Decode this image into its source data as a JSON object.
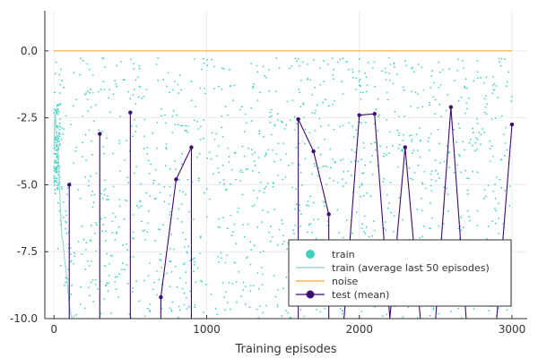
{
  "chart_data": {
    "type": "line",
    "title": "",
    "xlabel": "Training episodes",
    "ylabel": "",
    "xlim": [
      -60,
      3100
    ],
    "ylim": [
      -10,
      1.5
    ],
    "xticks": [
      0,
      1000,
      2000,
      3000
    ],
    "xtick_labels": [
      "0",
      "1000",
      "2000",
      "3000"
    ],
    "yticks": [
      0,
      -2.5,
      -5,
      -7.5,
      -10
    ],
    "ytick_labels": [
      "0.0",
      "-2.5",
      "-5.0",
      "-7.5",
      "-10.0"
    ],
    "grid": true,
    "legend_position": "bottom-right",
    "colors": {
      "train": "#3fd1c0",
      "train_avg": "#9fd6d2",
      "noise": "#f5b04a",
      "test": "#3b0a72"
    },
    "series": [
      {
        "name": "train",
        "kind": "scatter",
        "note_count": 1400,
        "x_range": [
          0,
          3000
        ],
        "y_range": [
          -10,
          -0.25
        ]
      },
      {
        "name": "train (average last 50 episodes)",
        "kind": "line",
        "x": [
          0,
          5,
          10,
          20,
          30,
          40,
          50,
          60,
          70,
          80,
          90,
          100,
          110,
          120,
          130
        ],
        "y": [
          -3.6,
          -2.4,
          -2.7,
          -3.4,
          -4.0,
          -5.6,
          -6.8,
          -7.2,
          -7.8,
          -8.3,
          -8.8,
          -9.5,
          -9.8,
          -10.0,
          -10.0
        ]
      },
      {
        "name": "noise",
        "kind": "line",
        "x": [
          0,
          3000
        ],
        "y": [
          0,
          0
        ]
      },
      {
        "name": "test (mean)",
        "kind": "line-markers",
        "x": [
          100,
          100,
          100,
          300,
          300,
          300,
          500,
          500,
          500,
          700,
          700,
          800,
          900,
          900,
          900,
          1600,
          1600,
          1700,
          1800,
          1800,
          1900,
          2000,
          2100,
          2200,
          2300,
          2400,
          2400,
          2500,
          2600,
          2700,
          2700,
          2800,
          2900,
          3000
        ],
        "y": [
          -10,
          -5.0,
          -10,
          -10,
          -3.1,
          -10,
          -10,
          -2.3,
          -10,
          -10,
          -9.2,
          -4.8,
          -3.6,
          -10,
          -10,
          -10,
          -2.55,
          -3.75,
          -6.1,
          -10,
          -10,
          -2.4,
          -2.35,
          -10,
          -3.6,
          -10,
          -10,
          -10,
          -2.1,
          -10,
          -10,
          -10,
          -10,
          -2.75
        ],
        "markers_x": [
          100,
          300,
          500,
          700,
          800,
          900,
          1600,
          1700,
          1800,
          2000,
          2100,
          2300,
          2600,
          3000
        ],
        "markers_y": [
          -5.0,
          -3.1,
          -2.3,
          -9.2,
          -4.8,
          -3.6,
          -2.55,
          -3.75,
          -6.1,
          -2.4,
          -2.35,
          -3.6,
          -2.1,
          -2.75
        ]
      }
    ],
    "legend_entries": [
      "train",
      "train (average last 50 episodes)",
      "noise",
      "test (mean)"
    ]
  }
}
